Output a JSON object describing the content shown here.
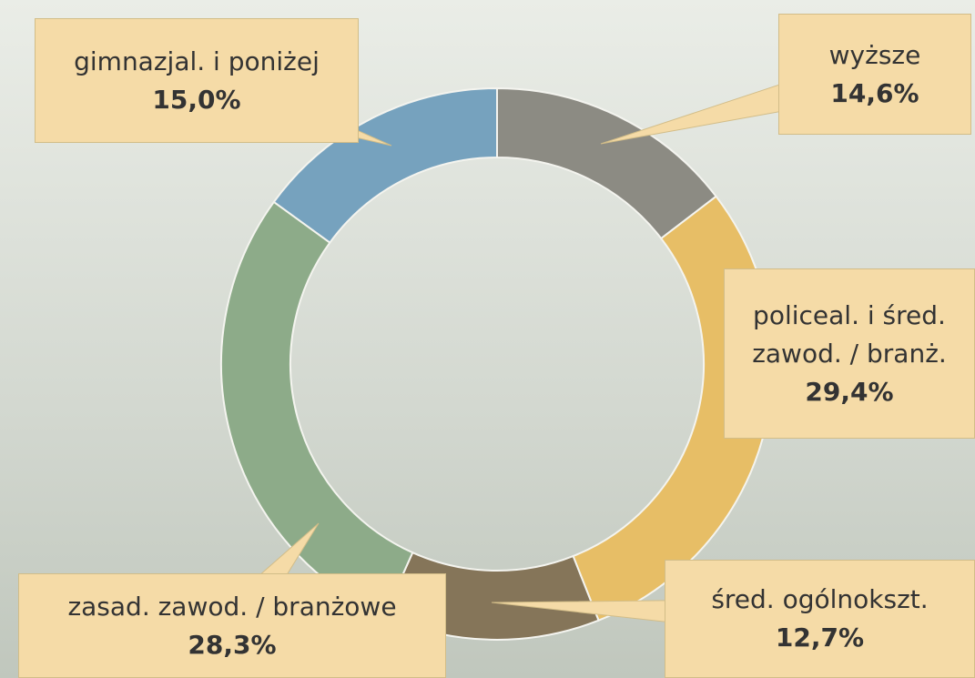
{
  "chart_data": {
    "type": "donut",
    "categories": [
      "wyższe",
      "policeal. i śred. zawod. / branż.",
      "śred. ogólnokszt.",
      "zasad. zawod. / branżowe",
      "gimnazjal. i poniżej"
    ],
    "values": [
      14.6,
      29.4,
      12.7,
      28.3,
      15.0
    ],
    "value_labels": [
      "14,6%",
      "29,4%",
      "12,7%",
      "28,3%",
      "15,0%"
    ],
    "colors": [
      "#8c8b83",
      "#e7be66",
      "#857559",
      "#8dab89",
      "#76a2be"
    ]
  }
}
